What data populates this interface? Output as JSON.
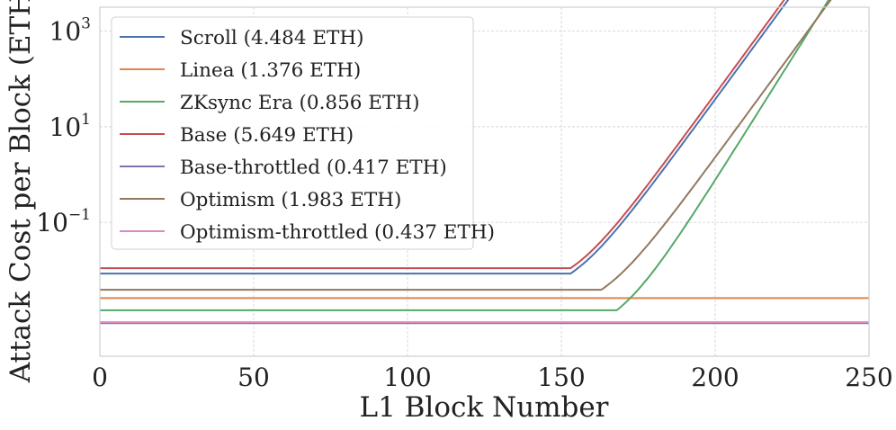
{
  "chart_data": {
    "type": "line",
    "title": "",
    "xlabel": "L1 Block Number",
    "ylabel": "Attack Cost per Block (ETH)",
    "xlim": [
      0,
      250
    ],
    "ylim_log10": [
      -3.8,
      3.5
    ],
    "yscale": "log",
    "grid": true,
    "legend_position": "top-left",
    "x_ticks": [
      "0",
      "50",
      "100",
      "150",
      "200",
      "250"
    ],
    "y_ticks": [
      {
        "base": "10",
        "exp": "3",
        "log10": 3
      },
      {
        "base": "10",
        "exp": "1",
        "log10": 1
      },
      {
        "base": "10",
        "exp": "−1",
        "log10": -1
      }
    ],
    "series": [
      {
        "name": "Scroll (4.484 ETH)",
        "color": "#4c72b0",
        "baseline": 0.0085,
        "rise_start": 153,
        "rise_factor": 3.6
      },
      {
        "name": "Linea (1.376 ETH)",
        "color": "#dd8452",
        "baseline": 0.0026,
        "rise_start": null,
        "rise_factor": 0
      },
      {
        "name": "ZKsync Era (0.856 ETH)",
        "color": "#55a868",
        "baseline": 0.00145,
        "rise_start": 168,
        "rise_factor": 4.2
      },
      {
        "name": "Base (5.649 ETH)",
        "color": "#c44e52",
        "baseline": 0.011,
        "rise_start": 153,
        "rise_factor": 3.6
      },
      {
        "name": "Base-throttled (0.417 ETH)",
        "color": "#8172b3",
        "baseline": 0.00078,
        "rise_start": null,
        "rise_factor": 0
      },
      {
        "name": "Optimism (1.983 ETH)",
        "color": "#937860",
        "baseline": 0.0039,
        "rise_start": 163,
        "rise_factor": 3.6
      },
      {
        "name": "Optimism-throttled (0.437 ETH)",
        "color": "#da8bc3",
        "baseline": 0.00082,
        "rise_start": null,
        "rise_factor": 0
      }
    ]
  }
}
